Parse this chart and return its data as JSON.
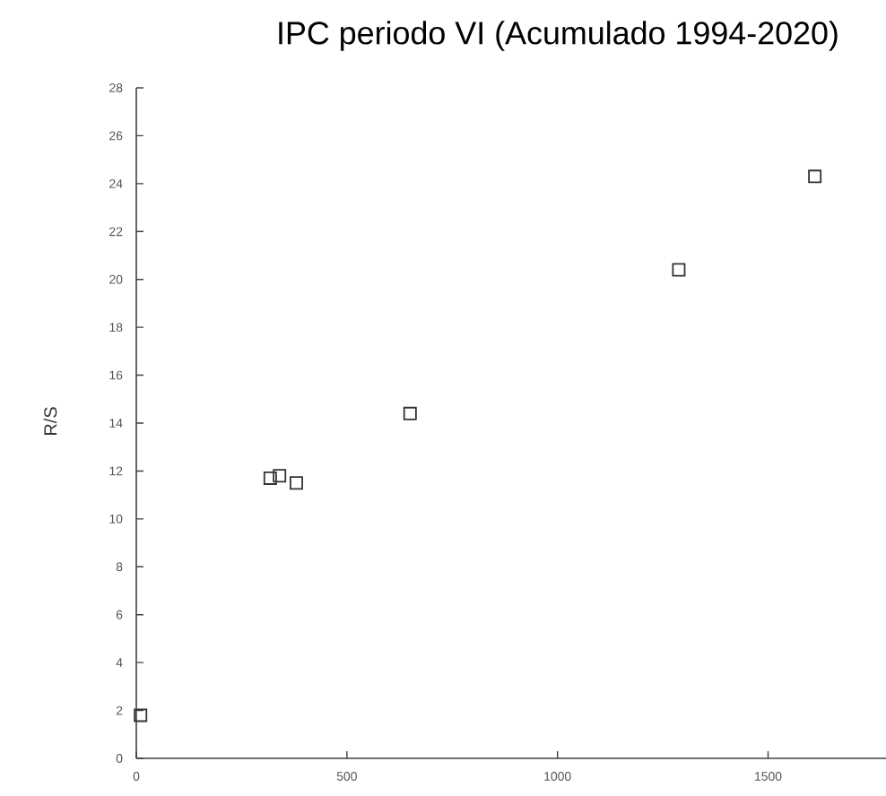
{
  "chart_data": {
    "type": "scatter",
    "title": "IPC periodo VI (Acumulado 1994-2020)",
    "ylabel": "R/S",
    "x": [
      10,
      318,
      340,
      380,
      650,
      1288,
      1611
    ],
    "values": [
      1.8,
      11.7,
      11.8,
      11.5,
      14.4,
      20.4,
      24.3
    ],
    "color": "#333333",
    "marker": "square",
    "xlim": [
      0,
      1780
    ],
    "ylim": [
      0,
      28
    ],
    "xticks": [
      0,
      500,
      1000,
      1500
    ],
    "yticks": [
      0,
      2,
      4,
      6,
      8,
      10,
      12,
      14,
      16,
      18,
      20,
      22,
      24,
      26,
      28
    ]
  }
}
